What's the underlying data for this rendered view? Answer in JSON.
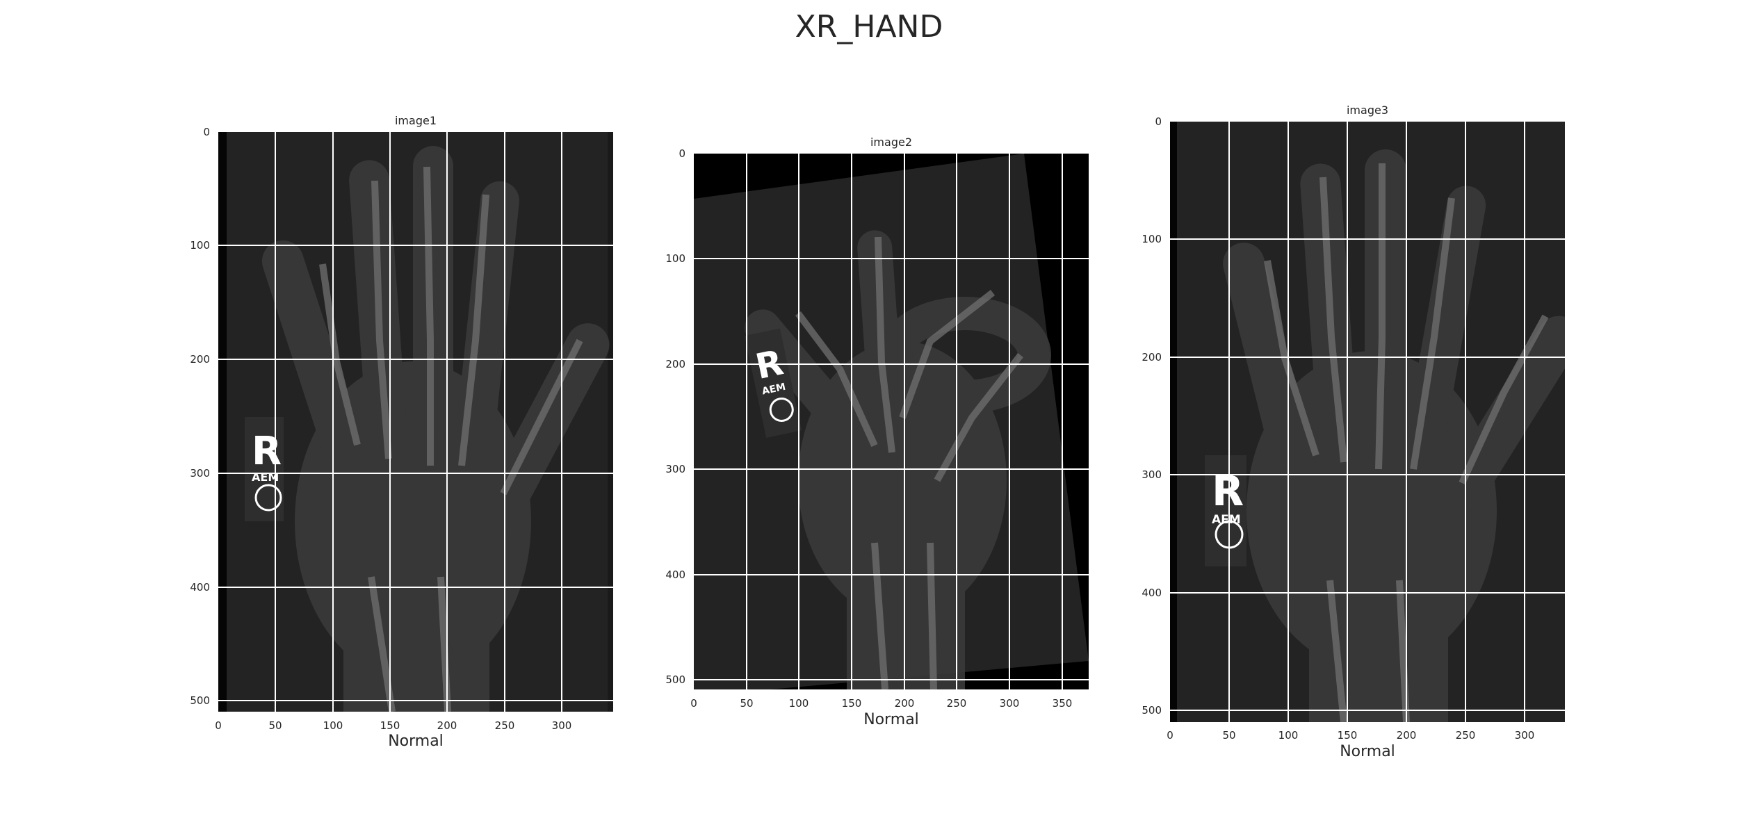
{
  "figure": {
    "title": "XR_HAND"
  },
  "panels": [
    {
      "title": "image1",
      "xlabel": "Normal",
      "x_ticks": [
        "0",
        "50",
        "100",
        "150",
        "200",
        "250",
        "300"
      ],
      "y_ticks": [
        "0",
        "100",
        "200",
        "300",
        "400",
        "500"
      ],
      "marker_text": {
        "letter": "R",
        "initials": "AEM"
      }
    },
    {
      "title": "image2",
      "xlabel": "Normal",
      "x_ticks": [
        "0",
        "50",
        "100",
        "150",
        "200",
        "250",
        "300",
        "350"
      ],
      "y_ticks": [
        "0",
        "100",
        "200",
        "300",
        "400",
        "500"
      ],
      "marker_text": {
        "letter": "R",
        "initials": "AEM"
      }
    },
    {
      "title": "image3",
      "xlabel": "Normal",
      "x_ticks": [
        "0",
        "50",
        "100",
        "150",
        "200",
        "250",
        "300"
      ],
      "y_ticks": [
        "0",
        "100",
        "200",
        "300",
        "400",
        "500"
      ],
      "marker_text": {
        "letter": "R",
        "initials": "AEM"
      }
    }
  ],
  "colors": {
    "background": "#ffffff",
    "xray_background": "#232323",
    "xray_border": "#000000",
    "bone": "#6a6a6a",
    "soft_tissue": "#3a3a3a",
    "grid": "#ffffff",
    "marker": "#ffffff",
    "text": "#262626"
  }
}
